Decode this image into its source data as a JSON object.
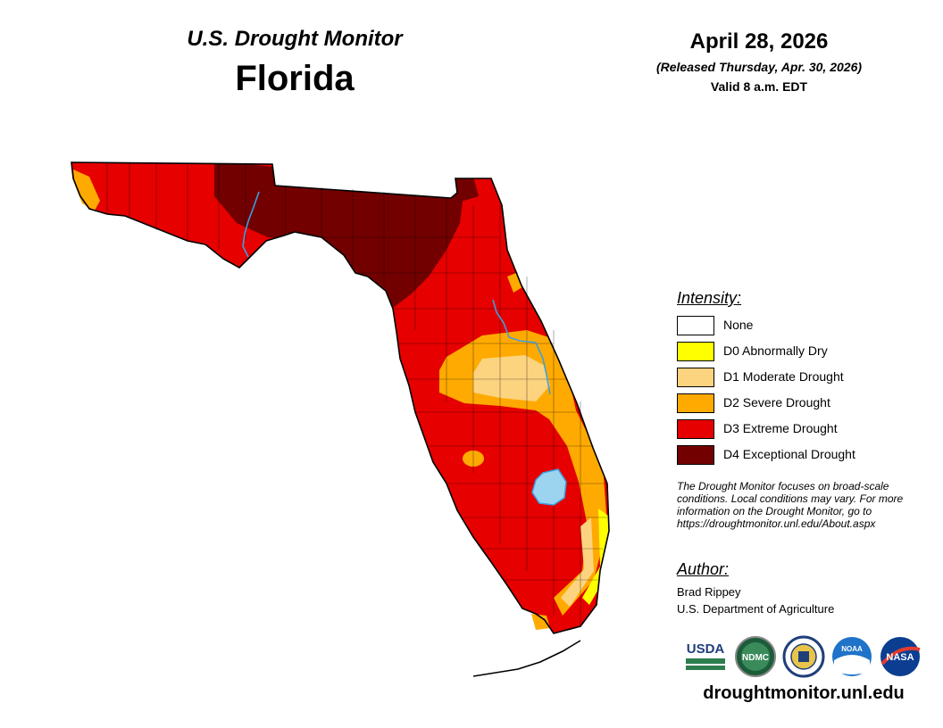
{
  "header": {
    "title": "U.S. Drought Monitor",
    "state": "Florida",
    "date": "April 28, 2026",
    "released": "(Released Thursday, Apr. 30, 2026)",
    "valid": "Valid 8 a.m. EDT"
  },
  "legend": {
    "title": "Intensity:",
    "items": [
      {
        "label": "None",
        "color": "#ffffff"
      },
      {
        "label": "D0 Abnormally Dry",
        "color": "#ffff00"
      },
      {
        "label": "D1 Moderate Drought",
        "color": "#fcd37f"
      },
      {
        "label": "D2 Severe Drought",
        "color": "#ffaa00"
      },
      {
        "label": "D3 Extreme Drought",
        "color": "#e60000"
      },
      {
        "label": "D4 Exceptional Drought",
        "color": "#730000"
      }
    ]
  },
  "note": "The Drought Monitor focuses on broad-scale conditions. Local conditions may vary. For more information on the Drought Monitor, go to https://droughtmonitor.unl.edu/About.aspx",
  "author": {
    "title": "Author:",
    "name": "Brad Rippey",
    "org": "U.S. Department of Agriculture"
  },
  "logos": [
    {
      "label": "USDA",
      "icon": "usda-logo-icon"
    },
    {
      "label": "NDMC",
      "icon": "ndmc-logo-icon"
    },
    {
      "label": "",
      "icon": "doc-seal-icon"
    },
    {
      "label": "NOAA",
      "icon": "noaa-logo-icon"
    },
    {
      "label": "NASA",
      "icon": "nasa-logo-icon"
    }
  ],
  "website": "droughtmonitor.unl.edu",
  "colors": {
    "water": "#9cd4f0",
    "river": "#3ba0e0",
    "border": "#000000"
  }
}
